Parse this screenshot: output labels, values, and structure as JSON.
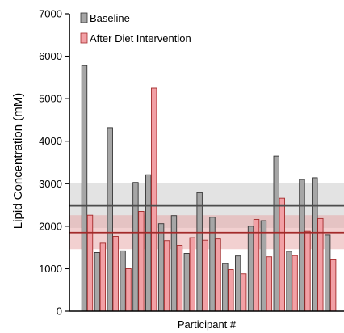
{
  "chart_data": {
    "type": "bar",
    "xlabel": "Participant #",
    "ylabel": "Lipid Concentration (mM)",
    "ylim": [
      0,
      7000
    ],
    "yticks": [
      "0",
      "1000",
      "2000",
      "3000",
      "4000",
      "5000",
      "6000",
      "7000"
    ],
    "legend_position": "top-left",
    "grid": false,
    "series": [
      {
        "name": "Baseline",
        "color": "#a6a6a6",
        "values": [
          5780,
          1380,
          4320,
          1420,
          3030,
          3210,
          2060,
          2250,
          1360,
          2790,
          2210,
          1120,
          1300,
          2000,
          2130,
          3650,
          1410,
          3100,
          3140,
          1790
        ]
      },
      {
        "name": "After Diet Intervention",
        "color": "#f2a0a5",
        "values": [
          2260,
          1600,
          1760,
          1000,
          2350,
          5250,
          1660,
          1550,
          1730,
          1670,
          1700,
          980,
          880,
          2160,
          1280,
          2660,
          1310,
          1880,
          2180,
          1210
        ]
      }
    ],
    "reference_lines": [
      {
        "series": "Baseline",
        "mean": 2480,
        "band": [
          1960,
          3020
        ],
        "line_color": "#4d4d4d",
        "band_color": "#d9d9d9"
      },
      {
        "series": "After Diet Intervention",
        "mean": 1850,
        "band": [
          1460,
          2260
        ],
        "line_color": "#a32a2a",
        "band_color": "#e8a9a9"
      }
    ]
  }
}
